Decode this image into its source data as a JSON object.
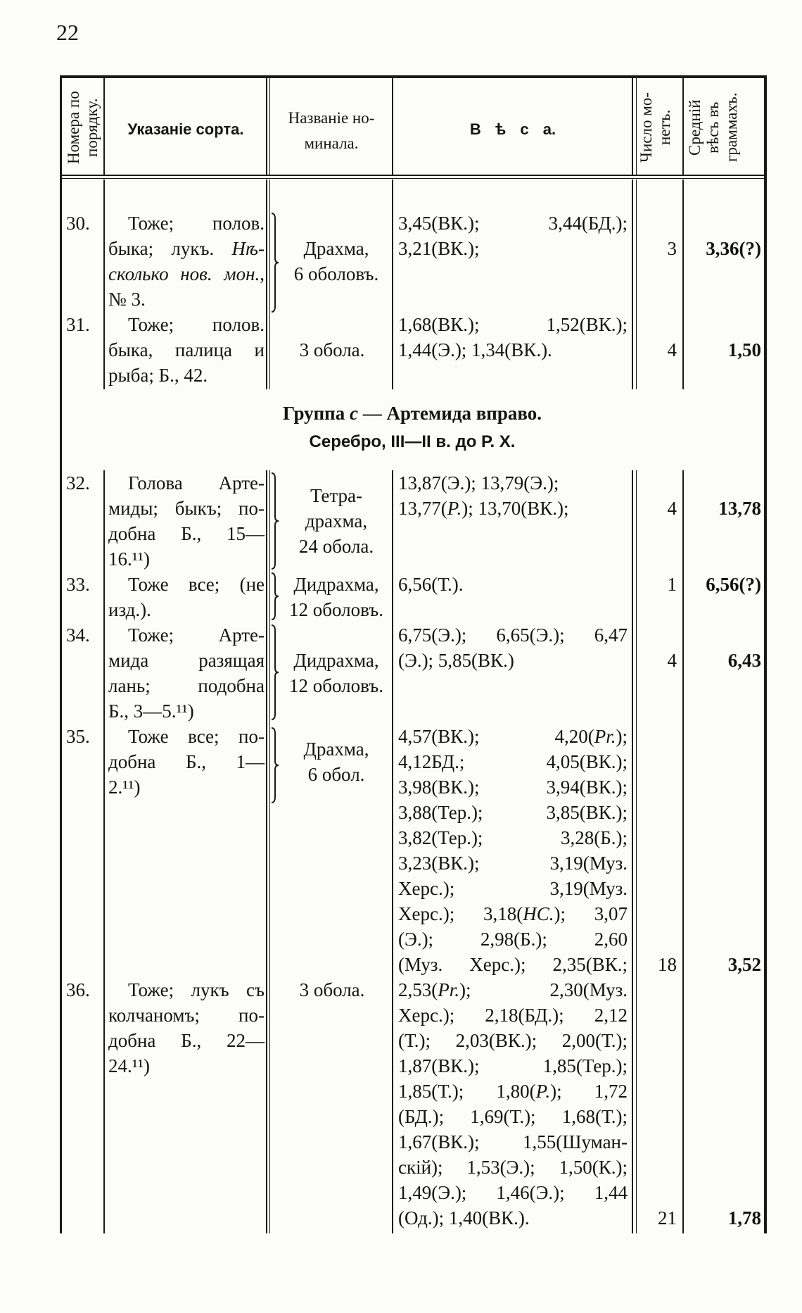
{
  "page_number": "22",
  "header": {
    "number": [
      "Номера по",
      "порядку."
    ],
    "sort": "Указаніе сорта.",
    "denomination": [
      "Названіе но-",
      "минала."
    ],
    "weights": "В ѣ с а.",
    "count": [
      "Число мо-",
      "нетъ."
    ],
    "average": [
      "Средній",
      "вѣсъ въ",
      "граммахъ."
    ]
  },
  "rows": [
    {
      "num": "30.",
      "desc": [
        "Тоже; полов.",
        "быка; лукъ. _Нѣ-_",
        "_сколько нов. мон._,",
        "№ 3."
      ],
      "denom": [
        "Драхма,",
        "6 оболовъ."
      ],
      "weights": [
        "3,45(ВК.); 3,44(БД.);",
        "3,21(ВК.);"
      ],
      "count": "3",
      "avg": "3,36(?)"
    },
    {
      "num": "31.",
      "desc": [
        "Тоже; полов.",
        "быка, палица и",
        "рыба; Б., 42."
      ],
      "denom": [
        "3 обола."
      ],
      "weights": [
        "1,68(ВК.); 1,52(ВК.);",
        "1,44(Э.); 1,34(ВК.)."
      ],
      "count": "4",
      "avg": "1,50"
    },
    {
      "num": "32.",
      "desc": [
        "Голова Арте-",
        "миды; быкъ; по-",
        "добна Б., 15—",
        "16.¹¹)"
      ],
      "denom": [
        "Тетра-",
        "драхма,",
        "24 обола."
      ],
      "weights": [
        "13,87(Э.); 13,79(Э.);",
        "13,77(_Р._); 13,70(ВК.);"
      ],
      "count": "4",
      "avg": "13,78"
    },
    {
      "num": "33.",
      "desc": [
        "Тоже все; (не",
        "изд.)."
      ],
      "denom": [
        "Дидрахма,",
        "12 оболовъ."
      ],
      "weights": [
        "6,56(Т.)."
      ],
      "count": "1",
      "avg": "6,56(?)"
    },
    {
      "num": "34.",
      "desc": [
        "Тоже; Арте-",
        "мида разящая",
        "лань; подобна",
        "Б., 3—5.¹¹)"
      ],
      "denom": [
        "Дидрахма,",
        "12 оболовъ."
      ],
      "weights": [
        "6,75(Э.); 6,65(Э.); 6,47",
        "(Э.); 5,85(ВК.)"
      ],
      "count": "4",
      "avg": "6,43"
    },
    {
      "num": "35.",
      "desc": [
        "Тоже все; по-",
        "добна Б., 1—",
        "2.¹¹)"
      ],
      "denom": [
        "Драхма,",
        "6 обол."
      ],
      "weights": [
        "4,57(ВК.); 4,20(_Pr._);",
        "4,12БД.; 4,05(ВК.);",
        "3,98(ВК.); 3,94(ВК.);",
        "3,88(Тер.); 3,85(ВК.);",
        "3,82(Тер.); 3,28(Б.);",
        "3,23(ВК.); 3,19(Муз.",
        "Херс.); 3,19(Муз.",
        "Херс.); 3,18(_НС._); 3,07",
        "(Э.); 2,98(Б.); 2,60",
        "(Муз. Херс.); 2,35(ВК.;"
      ],
      "count": "18",
      "avg": "3,52"
    },
    {
      "num": "36.",
      "desc": [
        "Тоже; лукъ съ",
        "колчаномъ; по-",
        "добна Б., 22—",
        "24.¹¹)"
      ],
      "denom": [
        "3 обола."
      ],
      "weights": [
        "2,53(_Pr._); 2,30(Муз.",
        "Херс.); 2,18(БД.); 2,12",
        "(Т.); 2,03(ВК.); 2,00(Т.);",
        "1,87(ВК.); 1,85(Тер.);",
        "1,85(Т.); 1,80(_Р._); 1,72",
        "(БД.); 1,69(Т.); 1,68(Т.);",
        "1,67(ВК.); 1,55(Шуман-",
        "скій); 1,53(Э.); 1,50(К.);",
        "1,49(Э.); 1,46(Э.); 1,44",
        "(Од.); 1,40(ВК.)."
      ],
      "count": "21",
      "avg": "1,78"
    }
  ],
  "group": {
    "title": "Группа _c_ — Артемида вправо.",
    "subtitle": "Серебро, III—II в. до Р. Х."
  }
}
